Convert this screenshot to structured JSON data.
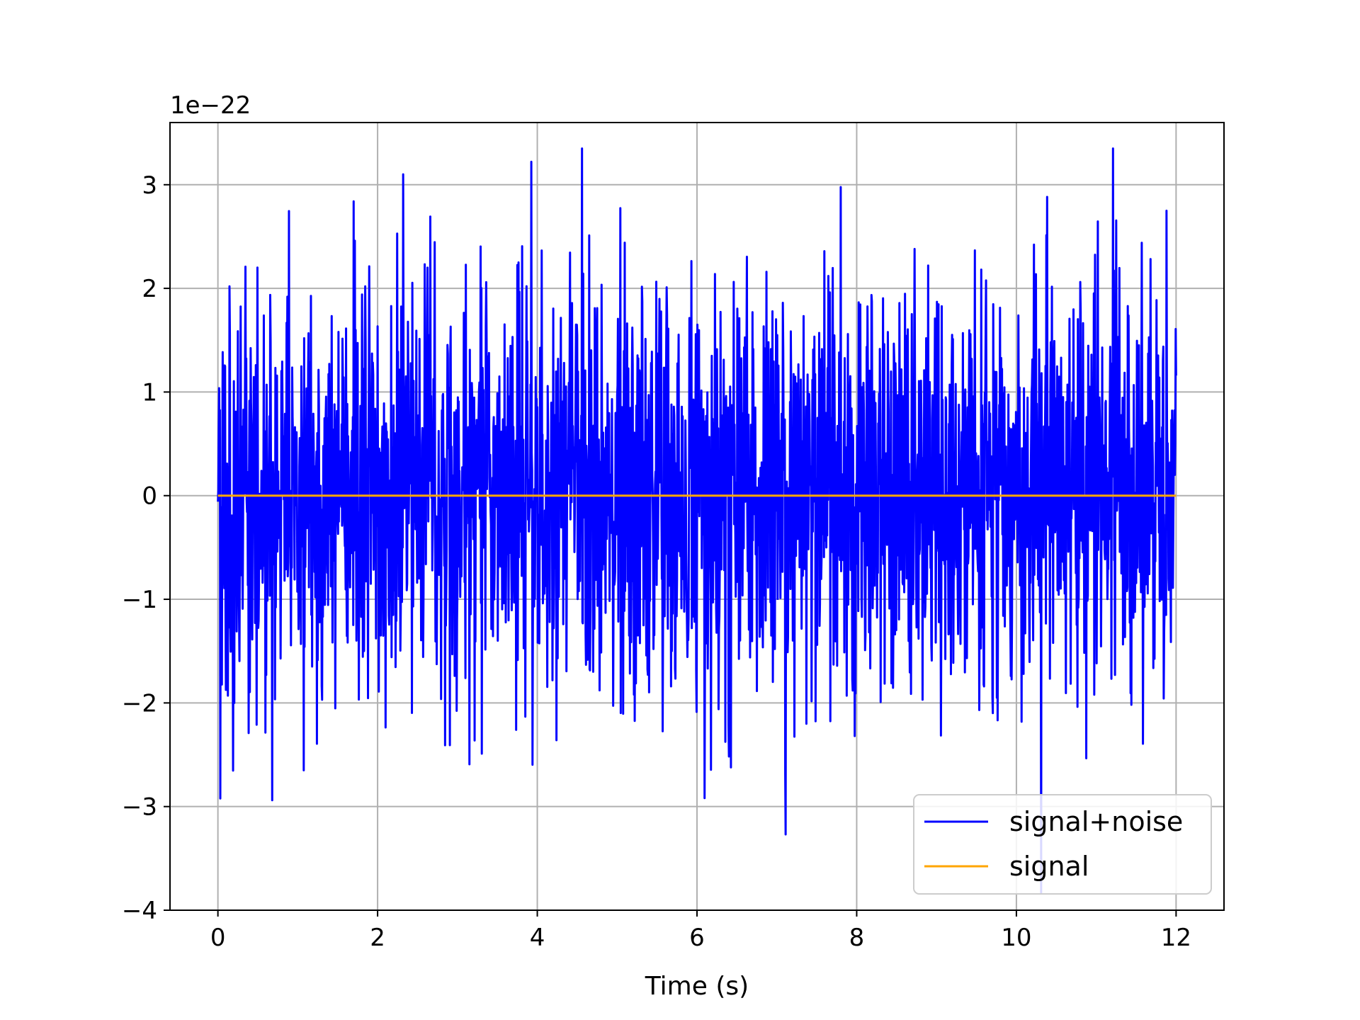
{
  "chart_data": {
    "type": "line",
    "title": "",
    "xlabel": "Time (s)",
    "ylabel": "",
    "y_scale_label": "1e−22",
    "xlim": [
      -0.6,
      12.6
    ],
    "ylim": [
      -4e-22,
      3.6e-22
    ],
    "grid": true,
    "legend_position": "lower-right",
    "x_ticks": [
      0,
      2,
      4,
      6,
      8,
      10,
      12
    ],
    "x_tick_labels": [
      "0",
      "2",
      "4",
      "6",
      "8",
      "10",
      "12"
    ],
    "y_ticks": [
      -4,
      -3,
      -2,
      -1,
      0,
      1,
      2,
      3
    ],
    "y_tick_labels": [
      "−4",
      "−3",
      "−2",
      "−1",
      "0",
      "1",
      "2",
      "3"
    ],
    "series": [
      {
        "name": "signal+noise",
        "color": "#0000ff",
        "x_range": [
          0,
          12
        ],
        "summary": {
          "mean": 0.0,
          "std": 1e-22,
          "max": 3.35e-22,
          "min": -3.9e-22
        }
      },
      {
        "name": "signal",
        "color": "#ffa500",
        "x_range": [
          0,
          12
        ],
        "summary": {
          "mean": 0.0,
          "std": 0.0
        }
      }
    ]
  }
}
